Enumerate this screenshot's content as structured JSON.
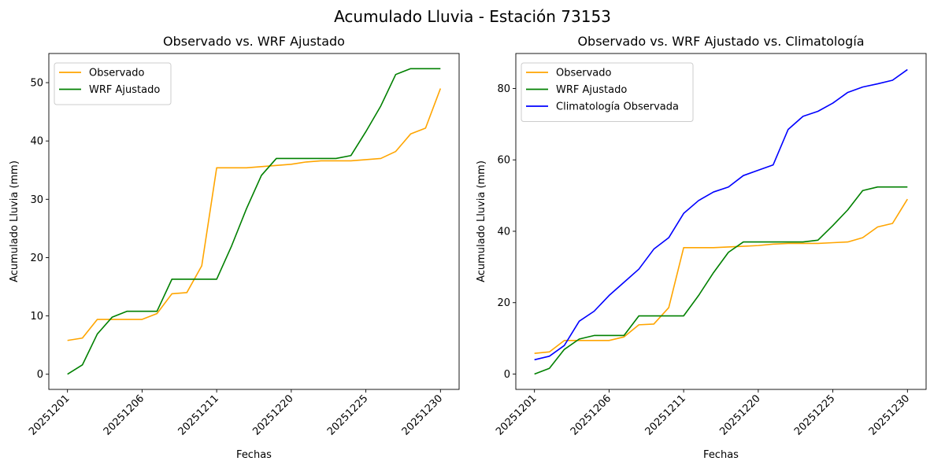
{
  "figure": {
    "suptitle": "Acumulado Lluvia - Estación 73153"
  },
  "colors": {
    "observado": "#ffa500",
    "wrf": "#008000",
    "clima": "#0000ff"
  },
  "chart_data": [
    {
      "type": "line",
      "title": "Observado vs. WRF Ajustado",
      "xlabel": "Fechas",
      "ylabel": "Acumulado Lluvia (mm)",
      "xticks": [
        {
          "label": "20251201",
          "index": 0
        },
        {
          "label": "20251206",
          "index": 5
        },
        {
          "label": "20251211",
          "index": 10
        },
        {
          "label": "20251220",
          "index": 15
        },
        {
          "label": "20251225",
          "index": 20
        },
        {
          "label": "20251230",
          "index": 25
        }
      ],
      "yticks": [
        0,
        10,
        20,
        30,
        40,
        50
      ],
      "ylim": [
        -2.6,
        55
      ],
      "legend": "top-left",
      "series": [
        {
          "name": "Observado",
          "color_key": "observado",
          "values": [
            5.8,
            6.2,
            9.4,
            9.4,
            9.4,
            9.4,
            10.4,
            13.8,
            14.0,
            18.6,
            35.4,
            35.4,
            35.4,
            35.6,
            35.8,
            36.0,
            36.4,
            36.6,
            36.6,
            36.6,
            36.8,
            37.0,
            38.2,
            41.2,
            42.2,
            49.0
          ]
        },
        {
          "name": "WRF Ajustado",
          "color_key": "wrf",
          "values": [
            0.0,
            1.6,
            6.9,
            9.8,
            10.8,
            10.8,
            10.8,
            16.3,
            16.3,
            16.3,
            16.3,
            22.0,
            28.4,
            34.1,
            37.0,
            37.0,
            37.0,
            37.0,
            37.0,
            37.5,
            41.6,
            46.0,
            51.4,
            52.4,
            52.4,
            52.4
          ]
        }
      ]
    },
    {
      "type": "line",
      "title": "Observado vs. WRF Ajustado vs. Climatología",
      "xlabel": "Fechas",
      "ylabel": "Acumulado Lluvia (mm)",
      "xticks": [
        {
          "label": "20251201",
          "index": 0
        },
        {
          "label": "20251206",
          "index": 5
        },
        {
          "label": "20251211",
          "index": 10
        },
        {
          "label": "20251220",
          "index": 15
        },
        {
          "label": "20251225",
          "index": 20
        },
        {
          "label": "20251230",
          "index": 25
        }
      ],
      "yticks": [
        0,
        20,
        40,
        60,
        80
      ],
      "ylim": [
        -4.3,
        89.8
      ],
      "legend": "top-left",
      "series": [
        {
          "name": "Observado",
          "color_key": "observado",
          "values": [
            5.8,
            6.2,
            9.4,
            9.4,
            9.4,
            9.4,
            10.4,
            13.8,
            14.0,
            18.6,
            35.4,
            35.4,
            35.4,
            35.6,
            35.8,
            36.0,
            36.4,
            36.6,
            36.6,
            36.6,
            36.8,
            37.0,
            38.2,
            41.2,
            42.2,
            49.0
          ]
        },
        {
          "name": "WRF Ajustado",
          "color_key": "wrf",
          "values": [
            0.0,
            1.6,
            6.9,
            9.8,
            10.8,
            10.8,
            10.8,
            16.3,
            16.3,
            16.3,
            16.3,
            22.0,
            28.4,
            34.1,
            37.0,
            37.0,
            37.0,
            37.0,
            37.0,
            37.5,
            41.6,
            46.0,
            51.4,
            52.4,
            52.4,
            52.4
          ]
        },
        {
          "name": "Climatología Observada",
          "color_key": "clima",
          "values": [
            4.0,
            5.0,
            8.0,
            14.8,
            17.6,
            22.0,
            25.7,
            29.4,
            35.0,
            38.2,
            45.0,
            48.6,
            51.0,
            52.4,
            55.6,
            57.1,
            58.6,
            68.5,
            72.2,
            73.6,
            75.9,
            78.9,
            80.4,
            81.3,
            82.3,
            85.3
          ]
        }
      ]
    }
  ]
}
